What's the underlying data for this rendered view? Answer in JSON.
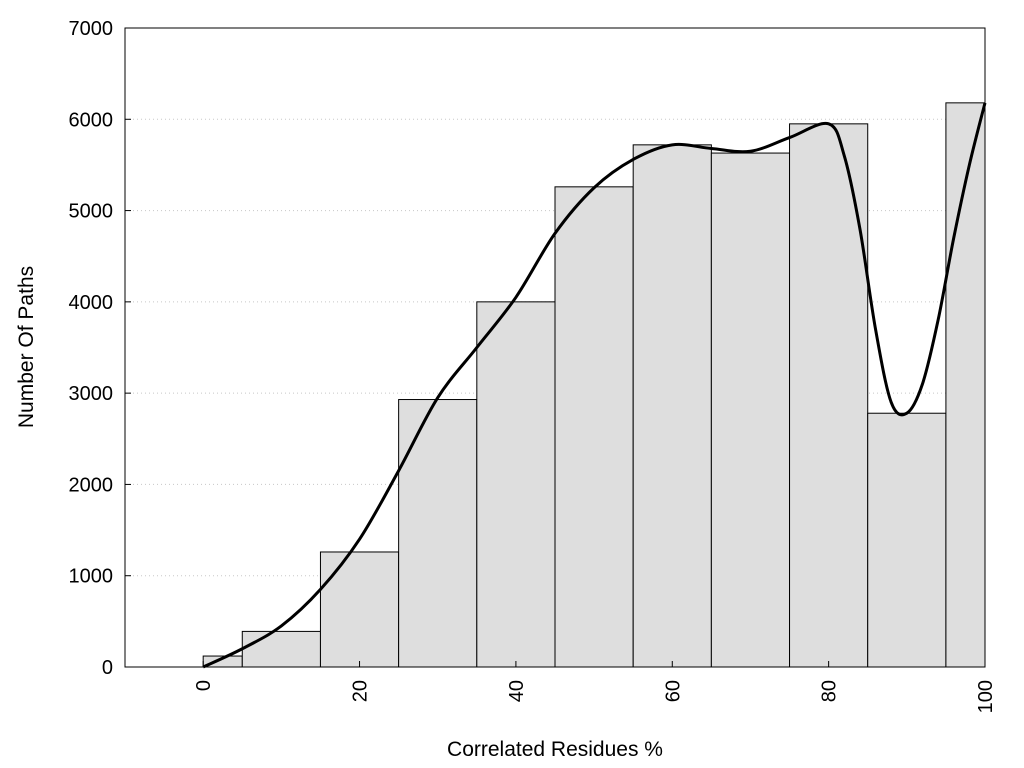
{
  "chart_data": {
    "type": "bar",
    "title": "",
    "xlabel": "Correlated Residues %",
    "ylabel": "Number Of Paths",
    "xlim": [
      -10,
      100
    ],
    "ylim": [
      0,
      7000
    ],
    "grid": true,
    "x_ticks": [
      "0",
      "20",
      "40",
      "60",
      "80",
      "100"
    ],
    "y_ticks": [
      "0",
      "1000",
      "2000",
      "3000",
      "4000",
      "5000",
      "6000",
      "7000"
    ],
    "bins": [
      {
        "from": 0,
        "to": 5,
        "value": 120
      },
      {
        "from": 5,
        "to": 15,
        "value": 390
      },
      {
        "from": 15,
        "to": 25,
        "value": 1260
      },
      {
        "from": 25,
        "to": 35,
        "value": 2930
      },
      {
        "from": 35,
        "to": 45,
        "value": 4000
      },
      {
        "from": 45,
        "to": 55,
        "value": 5260
      },
      {
        "from": 55,
        "to": 65,
        "value": 5720
      },
      {
        "from": 65,
        "to": 75,
        "value": 5630
      },
      {
        "from": 75,
        "to": 85,
        "value": 5950
      },
      {
        "from": 85,
        "to": 95,
        "value": 2780
      },
      {
        "from": 95,
        "to": 100,
        "value": 6180
      }
    ],
    "curve": {
      "x": [
        0,
        5,
        10,
        15,
        20,
        25,
        30,
        35,
        40,
        45,
        50,
        55,
        60,
        65,
        70,
        75,
        80,
        82,
        84,
        86,
        88,
        90,
        92,
        94,
        96,
        98,
        100
      ],
      "y": [
        0,
        200,
        450,
        850,
        1400,
        2150,
        2950,
        3500,
        4050,
        4750,
        5250,
        5560,
        5720,
        5680,
        5650,
        5800,
        5950,
        5600,
        4800,
        3700,
        2900,
        2780,
        3100,
        3800,
        4700,
        5500,
        6180
      ]
    },
    "colors": {
      "bar_fill": "#dedede",
      "bar_stroke": "#000000",
      "curve": "#000000",
      "grid": "#c8c8c8"
    }
  }
}
